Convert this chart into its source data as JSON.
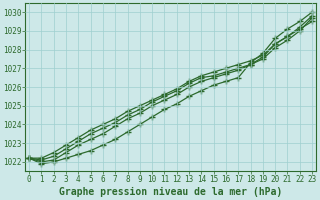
{
  "background_color": "#cde8e8",
  "grid_color": "#9fcfcf",
  "line_color": "#2d6a2d",
  "xlabel": "Graphe pression niveau de la mer (hPa)",
  "xlabel_color": "#2d6a2d",
  "ylim": [
    1021.5,
    1030.5
  ],
  "xlim": [
    -0.3,
    23.3
  ],
  "yticks": [
    1022,
    1023,
    1024,
    1025,
    1026,
    1027,
    1028,
    1029,
    1030
  ],
  "xticks": [
    0,
    1,
    2,
    3,
    4,
    5,
    6,
    7,
    8,
    9,
    10,
    11,
    12,
    13,
    14,
    15,
    16,
    17,
    18,
    19,
    20,
    21,
    22,
    23
  ],
  "series": [
    [
      1022.2,
      1021.9,
      1022.0,
      1022.2,
      1022.4,
      1022.6,
      1022.9,
      1023.2,
      1023.6,
      1024.0,
      1024.4,
      1024.8,
      1025.1,
      1025.5,
      1025.8,
      1026.1,
      1026.3,
      1026.5,
      1027.3,
      1027.8,
      1028.6,
      1029.1,
      1029.5,
      1030.0
    ],
    [
      1022.2,
      1022.0,
      1022.1,
      1022.5,
      1022.9,
      1023.2,
      1023.5,
      1023.9,
      1024.3,
      1024.6,
      1025.0,
      1025.3,
      1025.6,
      1026.0,
      1026.3,
      1026.5,
      1026.7,
      1026.9,
      1027.2,
      1027.6,
      1028.3,
      1028.7,
      1029.1,
      1029.5
    ],
    [
      1022.2,
      1022.1,
      1022.3,
      1022.7,
      1023.1,
      1023.5,
      1023.8,
      1024.1,
      1024.5,
      1024.8,
      1025.2,
      1025.5,
      1025.8,
      1026.2,
      1026.5,
      1026.6,
      1026.8,
      1027.0,
      1027.2,
      1027.5,
      1028.1,
      1028.5,
      1029.0,
      1029.7
    ],
    [
      1022.2,
      1022.2,
      1022.5,
      1022.9,
      1023.3,
      1023.7,
      1024.0,
      1024.3,
      1024.7,
      1025.0,
      1025.3,
      1025.6,
      1025.9,
      1026.3,
      1026.6,
      1026.8,
      1027.0,
      1027.2,
      1027.4,
      1027.7,
      1028.3,
      1028.7,
      1029.2,
      1029.8
    ]
  ],
  "marker": "+",
  "marker_size": 4,
  "line_width": 0.9,
  "tick_fontsize": 5.5,
  "xlabel_fontsize": 7,
  "tick_color": "#2d6a2d",
  "axis_color": "#2d6a2d",
  "fig_width": 3.2,
  "fig_height": 2.0,
  "dpi": 100
}
